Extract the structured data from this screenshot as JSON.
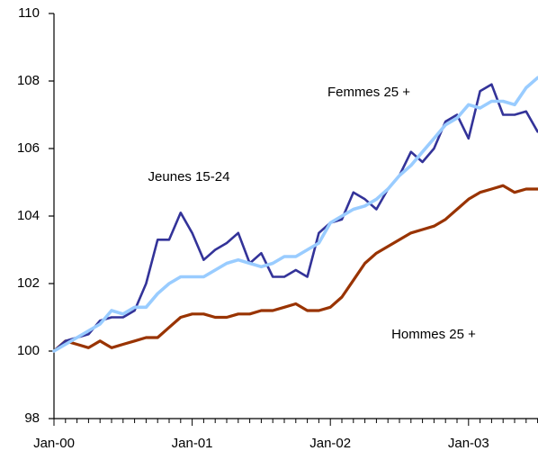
{
  "chart_data": {
    "type": "line",
    "categories": [
      "Jan-00",
      null,
      null,
      null,
      null,
      null,
      null,
      null,
      null,
      null,
      null,
      null,
      "Jan-01",
      null,
      null,
      null,
      null,
      null,
      null,
      null,
      null,
      null,
      null,
      null,
      "Jan-02",
      null,
      null,
      null,
      null,
      null,
      null,
      null,
      null,
      null,
      null,
      null,
      "Jan-03",
      null,
      null,
      null,
      null,
      null,
      null
    ],
    "series": [
      {
        "name": "Hommes 25 +",
        "color": "#993300",
        "width": 3.2,
        "values": [
          100.0,
          100.3,
          100.2,
          100.1,
          100.3,
          100.1,
          100.2,
          100.3,
          100.4,
          100.4,
          100.7,
          101.0,
          101.1,
          101.1,
          101.0,
          101.0,
          101.1,
          101.1,
          101.2,
          101.2,
          101.3,
          101.4,
          101.2,
          101.2,
          101.3,
          101.6,
          102.1,
          102.6,
          102.9,
          103.1,
          103.3,
          103.5,
          103.6,
          103.7,
          103.9,
          104.2,
          104.5,
          104.7,
          104.8,
          104.9,
          104.7,
          104.8,
          104.8
        ]
      },
      {
        "name": "Jeunes 15-24",
        "color": "#333399",
        "width": 2.6,
        "values": [
          100.0,
          100.3,
          100.4,
          100.5,
          100.9,
          101.0,
          101.0,
          101.2,
          102.0,
          103.3,
          103.3,
          104.1,
          103.5,
          102.7,
          103.0,
          103.2,
          103.5,
          102.6,
          102.9,
          102.2,
          102.2,
          102.4,
          102.2,
          103.5,
          103.8,
          103.9,
          104.7,
          104.5,
          104.2,
          104.8,
          105.2,
          105.9,
          105.6,
          106.0,
          106.8,
          107.0,
          106.3,
          107.7,
          107.9,
          107.0,
          107.0,
          107.1,
          106.5
        ]
      },
      {
        "name": "Femmes 25 +",
        "color": "#99ccff",
        "width": 3.6,
        "values": [
          100.0,
          100.2,
          100.4,
          100.6,
          100.8,
          101.2,
          101.1,
          101.3,
          101.3,
          101.7,
          102.0,
          102.2,
          102.2,
          102.2,
          102.4,
          102.6,
          102.7,
          102.6,
          102.5,
          102.6,
          102.8,
          102.8,
          103.0,
          103.2,
          103.8,
          104.0,
          104.2,
          104.3,
          104.5,
          104.8,
          105.2,
          105.5,
          105.9,
          106.3,
          106.7,
          106.9,
          107.3,
          107.2,
          107.4,
          107.4,
          107.3,
          107.8,
          108.1
        ]
      }
    ],
    "ylim": [
      98,
      110
    ],
    "yticks": [
      98,
      100,
      102,
      104,
      106,
      108,
      110
    ],
    "grid": false
  }
}
